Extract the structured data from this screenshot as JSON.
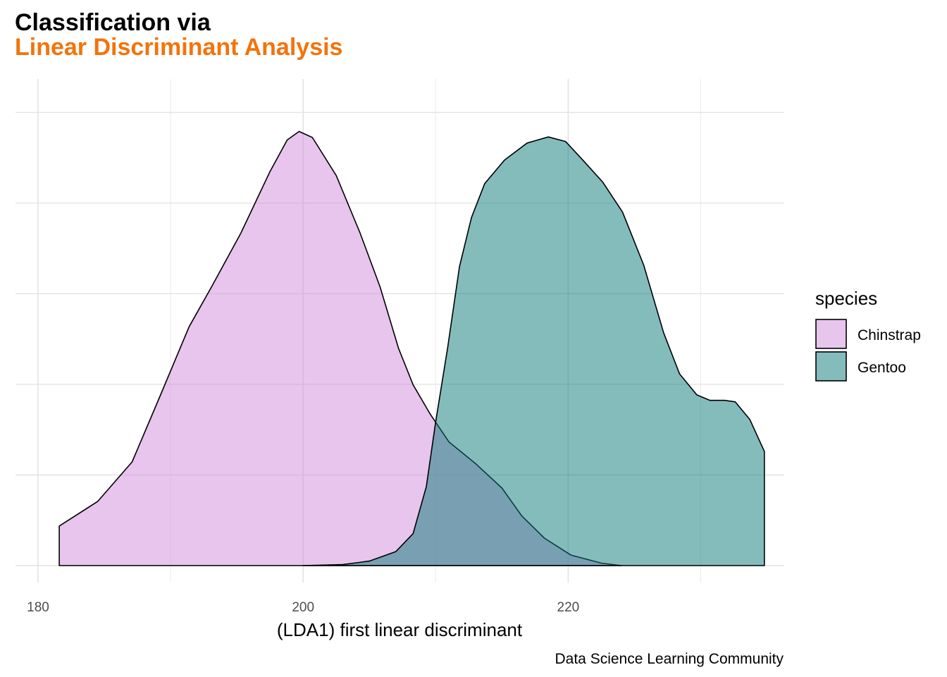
{
  "chart_data": {
    "type": "area",
    "title": "Classification via",
    "subtitle": "Linear Discriminant Analysis",
    "xlabel": "(LDA1) first linear discriminant",
    "ylabel": "",
    "caption": "Data Science Learning Community",
    "xlim": [
      178.3,
      236.3
    ],
    "ylim": [
      0,
      1
    ],
    "x_ticks": [
      180,
      200,
      220
    ],
    "x_tick_labels": [
      "180",
      "200",
      "220"
    ],
    "grid": true,
    "legend": {
      "title": "species",
      "position": "right",
      "entries": [
        "Chinstrap",
        "Gentoo"
      ]
    },
    "series": [
      {
        "name": "Chinstrap",
        "color": "#d28cd9",
        "points": [
          [
            181.6,
            0.079
          ],
          [
            184.5,
            0.128
          ],
          [
            187.1,
            0.207
          ],
          [
            189.2,
            0.338
          ],
          [
            191.4,
            0.477
          ],
          [
            193.1,
            0.557
          ],
          [
            195.3,
            0.664
          ],
          [
            197.5,
            0.787
          ],
          [
            198.8,
            0.85
          ],
          [
            199.7,
            0.867
          ],
          [
            200.7,
            0.855
          ],
          [
            202.5,
            0.779
          ],
          [
            204.3,
            0.664
          ],
          [
            205.8,
            0.557
          ],
          [
            207.2,
            0.434
          ],
          [
            208.3,
            0.361
          ],
          [
            209.6,
            0.302
          ],
          [
            211.0,
            0.247
          ],
          [
            213.0,
            0.204
          ],
          [
            215.0,
            0.155
          ],
          [
            216.5,
            0.099
          ],
          [
            218.2,
            0.055
          ],
          [
            220.2,
            0.021
          ],
          [
            222.5,
            0.005
          ],
          [
            224.0,
            0.0
          ]
        ]
      },
      {
        "name": "Gentoo",
        "color": "#0a7a7a",
        "points": [
          [
            200.0,
            0.0
          ],
          [
            203.0,
            0.002
          ],
          [
            205.0,
            0.009
          ],
          [
            207.0,
            0.028
          ],
          [
            208.3,
            0.064
          ],
          [
            209.3,
            0.158
          ],
          [
            210.0,
            0.287
          ],
          [
            210.9,
            0.434
          ],
          [
            211.8,
            0.597
          ],
          [
            212.7,
            0.695
          ],
          [
            213.7,
            0.763
          ],
          [
            215.2,
            0.81
          ],
          [
            216.9,
            0.844
          ],
          [
            218.5,
            0.856
          ],
          [
            219.8,
            0.847
          ],
          [
            221.1,
            0.81
          ],
          [
            222.6,
            0.766
          ],
          [
            224.1,
            0.706
          ],
          [
            225.7,
            0.6
          ],
          [
            227.2,
            0.465
          ],
          [
            228.4,
            0.383
          ],
          [
            229.7,
            0.341
          ],
          [
            230.7,
            0.33
          ],
          [
            231.8,
            0.33
          ],
          [
            232.6,
            0.327
          ],
          [
            233.7,
            0.292
          ],
          [
            234.8,
            0.228
          ]
        ]
      }
    ]
  }
}
